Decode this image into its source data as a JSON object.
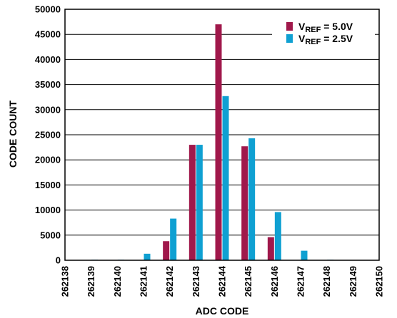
{
  "chart_data": {
    "type": "bar",
    "xlabel": "ADC CODE",
    "ylabel": "CODE COUNT",
    "ylim": [
      0,
      50000
    ],
    "yticks": [
      "0",
      "5000",
      "10000",
      "15000",
      "20000",
      "25000",
      "30000",
      "35000",
      "40000",
      "45000",
      "50000"
    ],
    "categories": [
      "262138",
      "262139",
      "262140",
      "262141",
      "262142",
      "262143",
      "262144",
      "262145",
      "262146",
      "262147",
      "262148",
      "262149",
      "262150"
    ],
    "grid": "horizontal",
    "legend_position": "top-right",
    "series": [
      {
        "name": "V_REF = 5.0V",
        "legend_main": "V",
        "legend_sub": "REF",
        "legend_rest": " = 5.0V",
        "color": "#a0184b",
        "values": [
          0,
          0,
          0,
          0,
          3800,
          23000,
          47000,
          22700,
          4600,
          0,
          0,
          0,
          0
        ]
      },
      {
        "name": "V_REF = 2.5V",
        "legend_main": "V",
        "legend_sub": "REF",
        "legend_rest": " = 2.5V",
        "color": "#0fa0d2",
        "values": [
          0,
          100,
          100,
          1300,
          8300,
          23000,
          32700,
          24300,
          9600,
          1900,
          100,
          50,
          0
        ]
      }
    ]
  }
}
